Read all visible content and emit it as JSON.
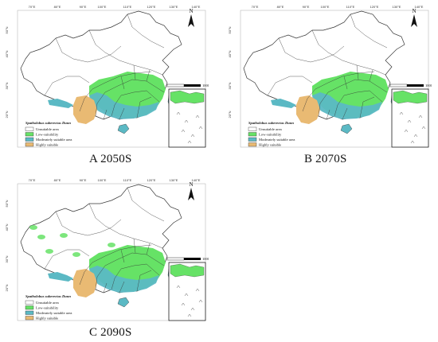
{
  "colors": {
    "unsuitable": "#ffffff",
    "low": "#66e266",
    "moderate": "#5bb9c4",
    "high": "#e9ba73",
    "border": "#333333",
    "frame": "#000000"
  },
  "shared": {
    "north_label": "N",
    "scale_label": "1000Km",
    "legend_title": "Spatholobus suberectus Dunn",
    "legend_items": [
      {
        "label": "Unsuitable area",
        "color_key": "unsuitable"
      },
      {
        "label": "Low-suitability",
        "color_key": "low"
      },
      {
        "label": "Moderately suitable area",
        "color_key": "moderate"
      },
      {
        "label": "Highly suitable",
        "color_key": "high"
      }
    ],
    "lon_ticks": [
      "70°E",
      "80°E",
      "90°E",
      "100°E",
      "110°E",
      "120°E",
      "130°E",
      "140°E"
    ],
    "lat_ticks": [
      "50°N",
      "40°N",
      "30°N",
      "20°N"
    ]
  },
  "panels": [
    {
      "id": "A",
      "caption": "A 2050S"
    },
    {
      "id": "B",
      "caption": "B 2070S"
    },
    {
      "id": "C",
      "caption": "C 2090S"
    }
  ]
}
